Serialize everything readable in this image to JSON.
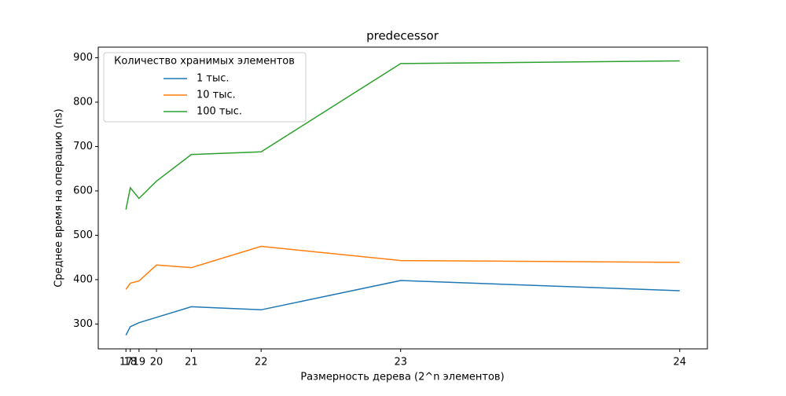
{
  "chart_data": {
    "type": "line",
    "title": "predecessor",
    "x_label": "Размерность дерева (2^n элементов)",
    "y_label": "Среднее время на операцию (ns)",
    "legend_title": "Количество хранимых элементов",
    "legend_position": "upper left",
    "x": [
      131072,
      262144,
      524288,
      1048576,
      2097152,
      4194304,
      8388608,
      16777216
    ],
    "xlim": [
      -701235,
      17609523
    ],
    "xticks": [
      {
        "value": 131072,
        "label": "17"
      },
      {
        "value": 262144,
        "label": "18"
      },
      {
        "value": 524288,
        "label": "19"
      },
      {
        "value": 1048576,
        "label": "20"
      },
      {
        "value": 2097152,
        "label": "21"
      },
      {
        "value": 4194304,
        "label": "22"
      },
      {
        "value": 8388608,
        "label": "23"
      },
      {
        "value": 16777216,
        "label": "24"
      }
    ],
    "ylim": [
      244,
      924
    ],
    "yticks": [
      300,
      400,
      500,
      600,
      700,
      800,
      900
    ],
    "series": [
      {
        "name": "1 тыс.",
        "color": "#1f77b4",
        "values": [
          275,
          294,
          303,
          315,
          339,
          332,
          398,
          375
        ]
      },
      {
        "name": "10 тыс.",
        "color": "#ff7f0e",
        "values": [
          378,
          392,
          397,
          433,
          427,
          475,
          443,
          439
        ]
      },
      {
        "name": "100 тыс.",
        "color": "#2ca02c",
        "values": [
          558,
          607,
          583,
          622,
          682,
          688,
          887,
          893
        ]
      }
    ]
  }
}
